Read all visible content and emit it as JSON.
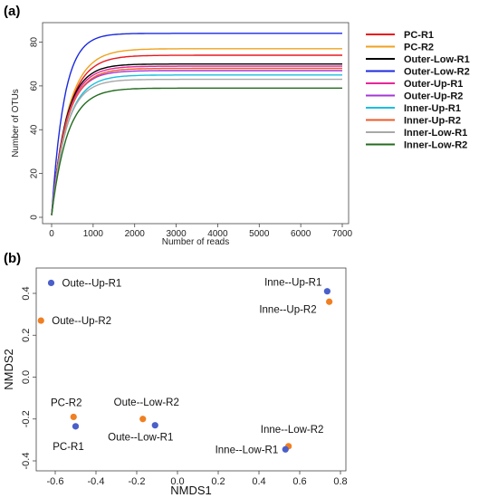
{
  "chart_data": [
    {
      "panel": "(a)",
      "type": "line",
      "xlabel": "Number of reads",
      "ylabel": "Number of OTUs",
      "xlim": [
        0,
        7000
      ],
      "ylim": [
        0,
        86
      ],
      "xticks": [
        0,
        1000,
        2000,
        3000,
        4000,
        5000,
        6000,
        7000
      ],
      "yticks": [
        0,
        20,
        40,
        60,
        80
      ],
      "grid": false,
      "legend_position": "right",
      "x": [
        0,
        100,
        200,
        300,
        400,
        500,
        600,
        700,
        800,
        900,
        1000,
        1200,
        1400,
        1600,
        1800,
        2000,
        2500,
        3000,
        3500,
        4000,
        5000,
        6000,
        7000
      ],
      "series": [
        {
          "name": "PC-R1",
          "color": "#e8191f",
          "plateau": 74,
          "k": 620
        },
        {
          "name": "PC-R2",
          "color": "#f0a21e",
          "plateau": 77,
          "k": 640
        },
        {
          "name": "Outer-Low-R1",
          "color": "#000000",
          "plateau": 70,
          "k": 560
        },
        {
          "name": "Outer-Low-R2",
          "color": "#1b2ae0",
          "plateau": 84,
          "k": 480
        },
        {
          "name": "Outer-Up-R1",
          "color": "#e8259a",
          "plateau": 69,
          "k": 570
        },
        {
          "name": "Outer-Up-R2",
          "color": "#a636d6",
          "plateau": 67,
          "k": 560
        },
        {
          "name": "Inner-Up-R1",
          "color": "#19bfe0",
          "plateau": 65,
          "k": 590
        },
        {
          "name": "Inner-Up-R2",
          "color": "#ef5a2a",
          "plateau": 68,
          "k": 580
        },
        {
          "name": "Inner-Low-R1",
          "color": "#a8a8a8",
          "plateau": 63,
          "k": 560
        },
        {
          "name": "Inner-Low-R2",
          "color": "#236b1e",
          "plateau": 59,
          "k": 610
        }
      ]
    },
    {
      "panel": "(b)",
      "type": "scatter",
      "xlabel": "NMDS1",
      "ylabel": "NMDS2",
      "xlim": [
        -0.7,
        0.8
      ],
      "ylim": [
        -0.4,
        0.5
      ],
      "xticks": [
        "-0.6",
        "-0.4",
        "-0.2",
        "0.0",
        "0.2",
        "0.4",
        "0.6",
        "0.8"
      ],
      "yticks": [
        "-0.4",
        "-0.2",
        "0.0",
        "0.2",
        "0.4"
      ],
      "grid": false,
      "colors": {
        "R1": "#4a5fc9",
        "R2": "#f07f22"
      },
      "points": [
        {
          "label": "Oute--Up-R1",
          "x": -0.62,
          "y": 0.45,
          "color": "#4a5fc9"
        },
        {
          "label": "Oute--Up-R2",
          "x": -0.67,
          "y": 0.27,
          "color": "#f07f22"
        },
        {
          "label": "PC-R2",
          "x": -0.51,
          "y": -0.19,
          "color": "#f07f22"
        },
        {
          "label": "PC-R1",
          "x": -0.5,
          "y": -0.235,
          "color": "#4a5fc9"
        },
        {
          "label": "Oute--Low-R2",
          "x": -0.17,
          "y": -0.2,
          "color": "#f07f22"
        },
        {
          "label": "Oute--Low-R1",
          "x": -0.11,
          "y": -0.23,
          "color": "#4a5fc9"
        },
        {
          "label": "Inne--Up-R1",
          "x": 0.735,
          "y": 0.41,
          "color": "#4a5fc9"
        },
        {
          "label": "Inne--Up-R2",
          "x": 0.745,
          "y": 0.36,
          "color": "#f07f22"
        },
        {
          "label": "Inne--Low-R2",
          "x": 0.545,
          "y": -0.33,
          "color": "#f07f22"
        },
        {
          "label": "Inne--Low-R1",
          "x": 0.53,
          "y": -0.345,
          "color": "#4a5fc9"
        }
      ]
    }
  ]
}
